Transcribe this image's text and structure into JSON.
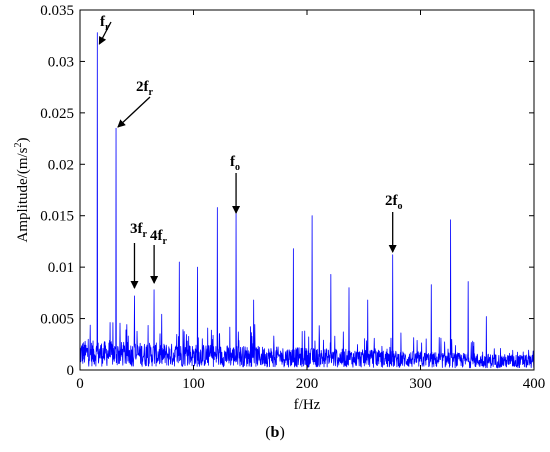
{
  "chart_data": {
    "type": "line",
    "title": "",
    "xlabel": "f/Hz",
    "ylabel_main": "Amplitude/(m/s",
    "ylabel_sup": "2",
    "ylabel_close": ")",
    "xlim": [
      0,
      400
    ],
    "ylim": [
      0,
      0.035
    ],
    "xticks": [
      0,
      100,
      200,
      300,
      400
    ],
    "yticks": [
      0,
      0.005,
      0.01,
      0.015,
      0.02,
      0.025,
      0.03,
      0.035
    ],
    "ytick_labels": [
      "0",
      "0.005",
      "0.01",
      "0.015",
      "0.02",
      "0.025",
      "0.03",
      "0.035"
    ],
    "grid": false,
    "line_color": "#0000ff",
    "noise_floor": "0.001-0.006",
    "peaks": [
      {
        "x": 15.3,
        "y": 0.0328
      },
      {
        "x": 31.7,
        "y": 0.0235
      },
      {
        "x": 48.0,
        "y": 0.0072
      },
      {
        "x": 65.3,
        "y": 0.0078
      },
      {
        "x": 87.5,
        "y": 0.0105
      },
      {
        "x": 103.5,
        "y": 0.01
      },
      {
        "x": 121.0,
        "y": 0.0158
      },
      {
        "x": 137.5,
        "y": 0.0155
      },
      {
        "x": 153.0,
        "y": 0.0068
      },
      {
        "x": 188.0,
        "y": 0.0118
      },
      {
        "x": 204.5,
        "y": 0.015
      },
      {
        "x": 221.0,
        "y": 0.0093
      },
      {
        "x": 237.0,
        "y": 0.008
      },
      {
        "x": 253.5,
        "y": 0.0068
      },
      {
        "x": 275.5,
        "y": 0.0112
      },
      {
        "x": 309.5,
        "y": 0.0083
      },
      {
        "x": 326.5,
        "y": 0.0146
      },
      {
        "x": 342.0,
        "y": 0.0086
      },
      {
        "x": 358.0,
        "y": 0.0052
      }
    ],
    "annotations": [
      {
        "main": "f",
        "sub": "r",
        "x": 15.3
      },
      {
        "main": "2f",
        "sub": "r",
        "x": 31.7
      },
      {
        "main": "3f",
        "sub": "r",
        "x": 48.0
      },
      {
        "main": "4f",
        "sub": "r",
        "x": 65.3
      },
      {
        "main": "f",
        "sub": "o",
        "x": 137.5
      },
      {
        "main": "2f",
        "sub": "o",
        "x": 275.5
      }
    ]
  },
  "caption": {
    "open": "(",
    "bold": "b",
    "close": ")"
  }
}
